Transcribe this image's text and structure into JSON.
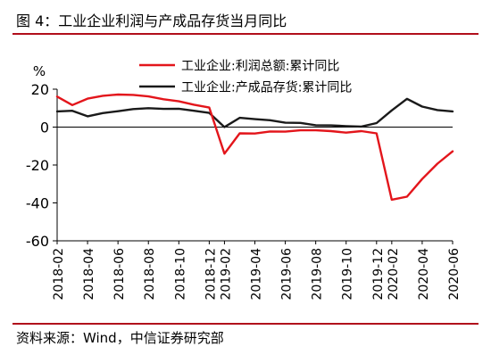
{
  "figure": {
    "title": "图 4：工业企业利润与产成品存货当月同比",
    "source": "资料来源：Wind，中信证券研究部"
  },
  "chart_data": {
    "type": "line",
    "ylabel_unit": "%",
    "ylim": [
      -60,
      20
    ],
    "yticks": [
      20,
      0,
      -20,
      -40,
      -60
    ],
    "x": [
      "2018-02",
      "2018-03",
      "2018-04",
      "2018-05",
      "2018-06",
      "2018-07",
      "2018-08",
      "2018-09",
      "2018-10",
      "2018-11",
      "2018-12",
      "2019-02",
      "2019-03",
      "2019-04",
      "2019-05",
      "2019-06",
      "2019-07",
      "2019-08",
      "2019-09",
      "2019-10",
      "2019-11",
      "2019-12",
      "2020-02",
      "2020-03",
      "2020-04",
      "2020-05",
      "2020-06"
    ],
    "xtick_labels": [
      "2018-02",
      "2018-04",
      "2018-06",
      "2018-08",
      "2018-10",
      "2018-12",
      "2019-02",
      "2019-04",
      "2019-06",
      "2019-08",
      "2019-10",
      "2019-12",
      "2020-02",
      "2020-04",
      "2020-06"
    ],
    "legend_position": "top-center",
    "series": [
      {
        "name": "工业企业:利润总额:累计同比",
        "color": "#e3151b",
        "values": [
          16.1,
          11.6,
          15.0,
          16.5,
          17.2,
          17.0,
          16.2,
          14.7,
          13.6,
          11.8,
          10.3,
          -14.0,
          -3.3,
          -3.4,
          -2.3,
          -2.4,
          -1.7,
          -1.7,
          -2.1,
          -2.9,
          -2.1,
          -3.3,
          -38.3,
          -36.7,
          -27.4,
          -19.3,
          -12.8
        ]
      },
      {
        "name": "工业企业:产成品存货:累计同比",
        "color": "#1a1a1a",
        "values": [
          8.3,
          8.6,
          5.7,
          7.4,
          8.4,
          9.5,
          10.0,
          9.6,
          9.7,
          8.6,
          7.5,
          0.0,
          4.9,
          4.2,
          3.6,
          2.3,
          2.2,
          1.0,
          0.9,
          0.5,
          0.3,
          2.1,
          8.8,
          14.9,
          10.8,
          9.0,
          8.3
        ]
      }
    ]
  }
}
